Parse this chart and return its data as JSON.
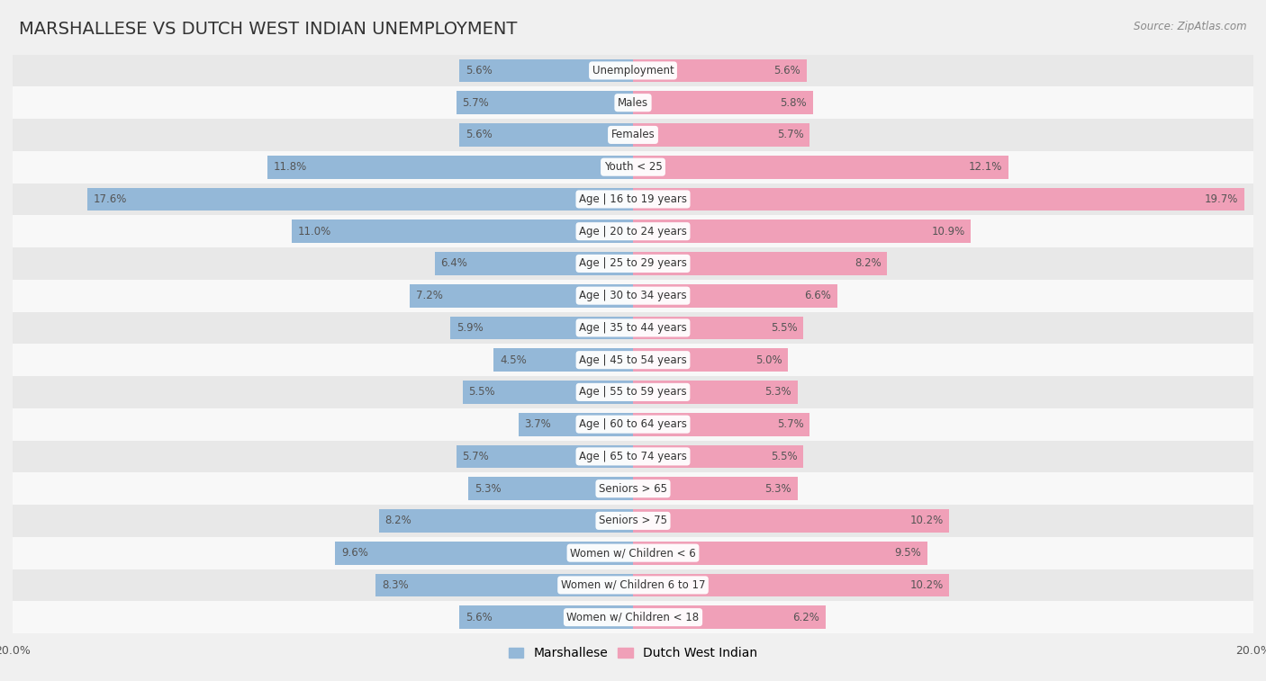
{
  "title": "MARSHALLESE VS DUTCH WEST INDIAN UNEMPLOYMENT",
  "source": "Source: ZipAtlas.com",
  "categories": [
    "Unemployment",
    "Males",
    "Females",
    "Youth < 25",
    "Age | 16 to 19 years",
    "Age | 20 to 24 years",
    "Age | 25 to 29 years",
    "Age | 30 to 34 years",
    "Age | 35 to 44 years",
    "Age | 45 to 54 years",
    "Age | 55 to 59 years",
    "Age | 60 to 64 years",
    "Age | 65 to 74 years",
    "Seniors > 65",
    "Seniors > 75",
    "Women w/ Children < 6",
    "Women w/ Children 6 to 17",
    "Women w/ Children < 18"
  ],
  "marshallese": [
    5.6,
    5.7,
    5.6,
    11.8,
    17.6,
    11.0,
    6.4,
    7.2,
    5.9,
    4.5,
    5.5,
    3.7,
    5.7,
    5.3,
    8.2,
    9.6,
    8.3,
    5.6
  ],
  "dutch_west_indian": [
    5.6,
    5.8,
    5.7,
    12.1,
    19.7,
    10.9,
    8.2,
    6.6,
    5.5,
    5.0,
    5.3,
    5.7,
    5.5,
    5.3,
    10.2,
    9.5,
    10.2,
    6.2
  ],
  "max_val": 20.0,
  "color_marshallese": "#94b8d8",
  "color_dutch": "#f0a0b8",
  "bg_color": "#f0f0f0",
  "row_bg_even": "#e8e8e8",
  "row_bg_odd": "#f8f8f8",
  "title_fontsize": 14,
  "category_fontsize": 8.5,
  "value_fontsize": 8.5
}
